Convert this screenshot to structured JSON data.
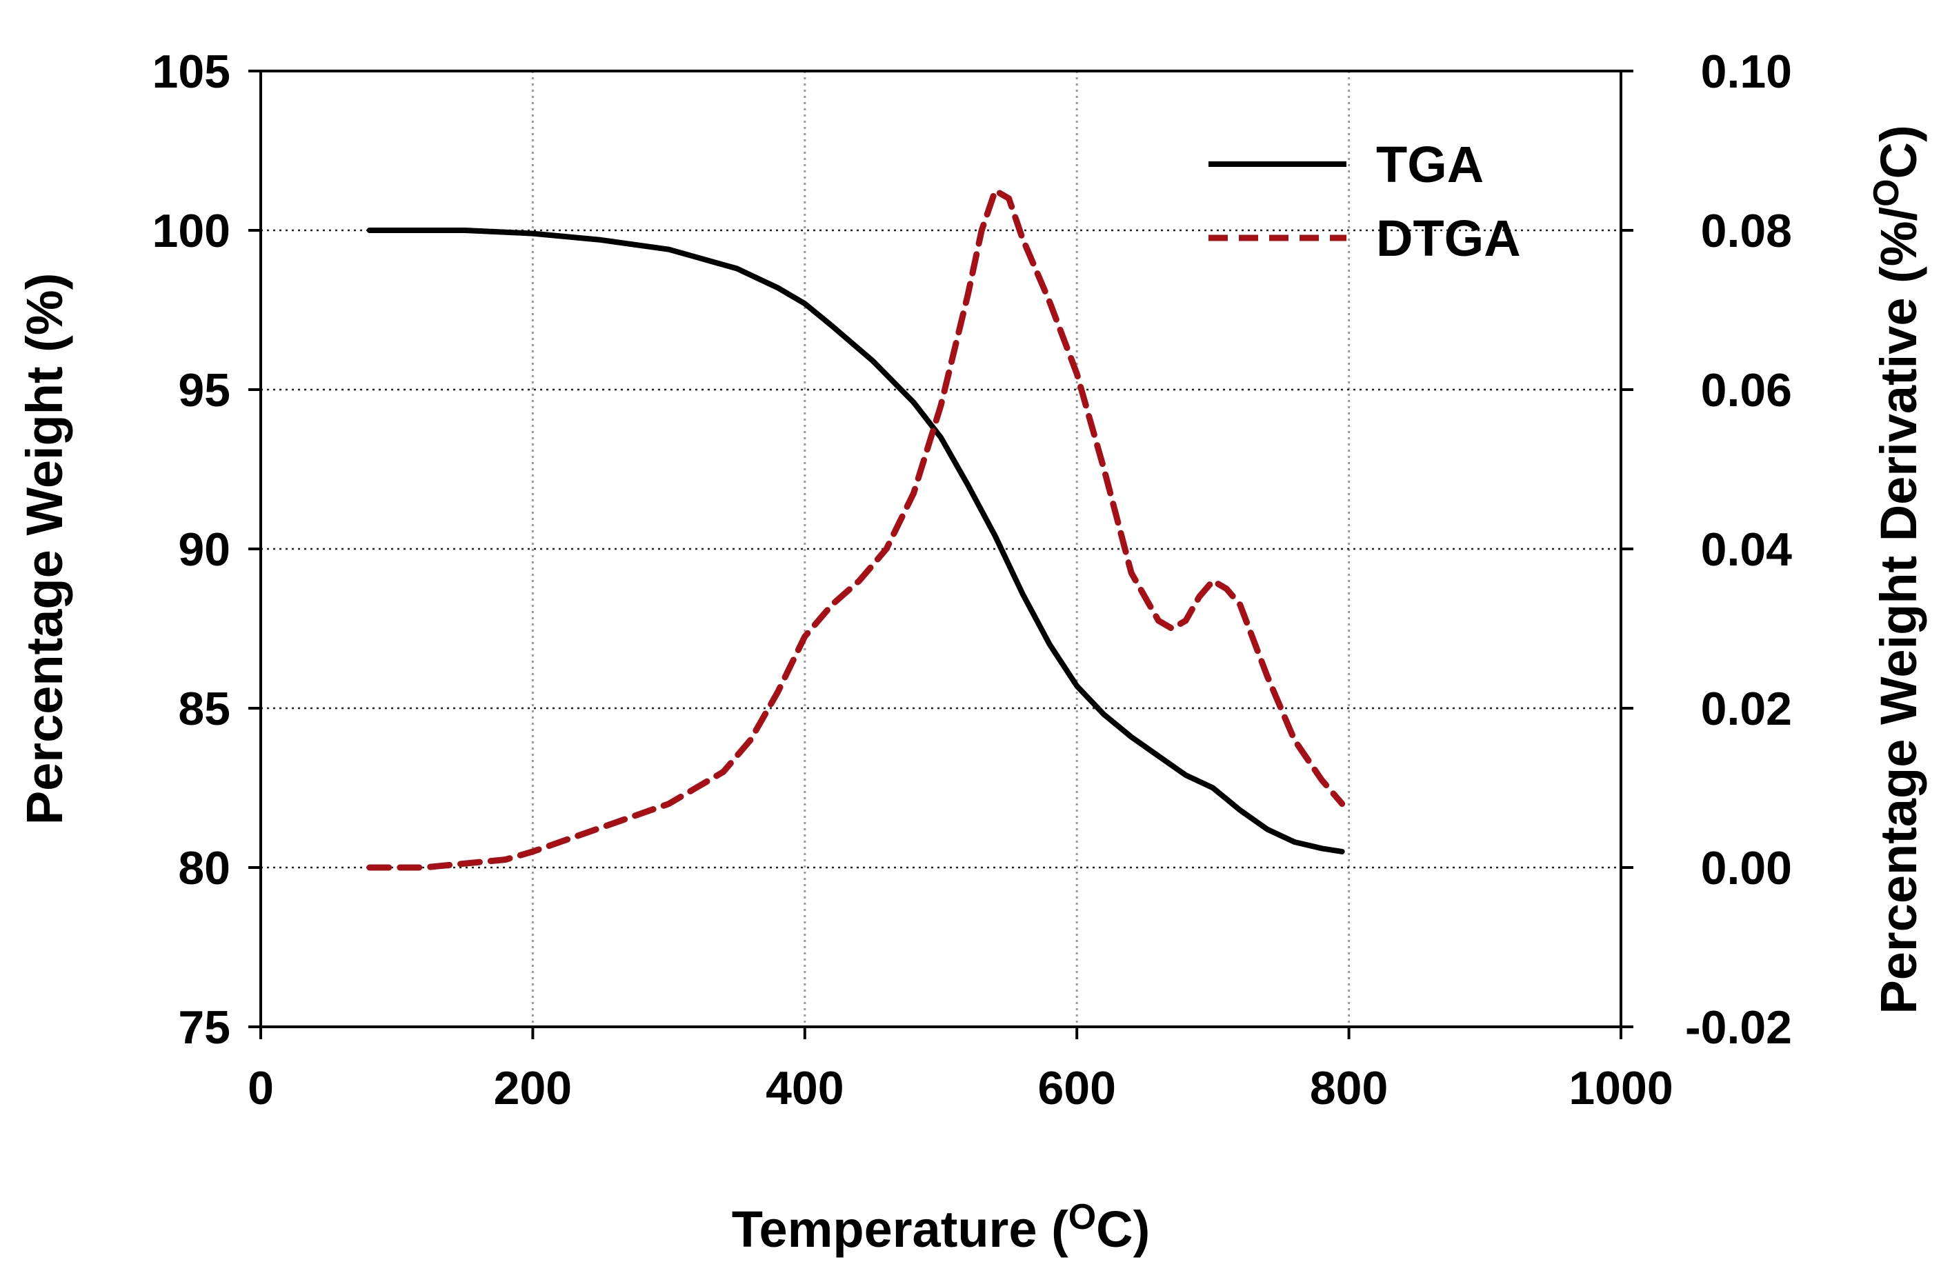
{
  "chart_data": {
    "type": "line",
    "title": "",
    "xlabel": "Temperature (",
    "xlabel_unit_sup": "O",
    "xlabel_unit_tail": "C)",
    "ylabel_left": "Percentage Weight (%)",
    "ylabel_right": "Percentage Weight Derivative (%/",
    "ylabel_right_sup": "O",
    "ylabel_right_tail": "C)",
    "xlim": [
      0,
      1000
    ],
    "ylim_left": [
      75,
      105
    ],
    "ylim_right": [
      -0.02,
      0.1
    ],
    "x_ticks": [
      "0",
      "200",
      "400",
      "600",
      "800",
      "1000"
    ],
    "y_left_ticks": [
      "75",
      "80",
      "85",
      "90",
      "95",
      "100",
      "105"
    ],
    "y_right_ticks": [
      "-0.02",
      "0.00",
      "0.02",
      "0.04",
      "0.06",
      "0.08",
      "0.10"
    ],
    "grid": "dotted",
    "legend": {
      "position": "top-right",
      "entries": [
        "TGA",
        "DTGA"
      ]
    },
    "colors": {
      "TGA": "#000000",
      "DTGA": "#a50f15"
    },
    "series": [
      {
        "name": "TGA",
        "axis": "left",
        "style": "solid",
        "x": [
          80,
          100,
          150,
          200,
          250,
          300,
          350,
          380,
          400,
          420,
          450,
          480,
          500,
          520,
          540,
          560,
          580,
          600,
          620,
          640,
          660,
          680,
          700,
          720,
          740,
          760,
          780,
          795
        ],
        "y": [
          100.0,
          100.0,
          100.0,
          99.9,
          99.7,
          99.4,
          98.8,
          98.2,
          97.7,
          97.0,
          95.9,
          94.6,
          93.5,
          92.0,
          90.4,
          88.6,
          87.0,
          85.7,
          84.8,
          84.1,
          83.5,
          82.9,
          82.5,
          81.8,
          81.2,
          80.8,
          80.6,
          80.5
        ]
      },
      {
        "name": "DTGA",
        "axis": "right",
        "style": "dashed",
        "x": [
          80,
          100,
          120,
          150,
          180,
          200,
          250,
          300,
          340,
          360,
          380,
          400,
          420,
          440,
          460,
          480,
          500,
          520,
          530,
          540,
          550,
          560,
          580,
          600,
          620,
          640,
          660,
          670,
          680,
          690,
          700,
          710,
          720,
          740,
          760,
          780,
          795
        ],
        "y": [
          0.0,
          0.0,
          0.0,
          0.0005,
          0.001,
          0.002,
          0.005,
          0.008,
          0.012,
          0.016,
          0.022,
          0.029,
          0.033,
          0.036,
          0.04,
          0.047,
          0.058,
          0.072,
          0.08,
          0.085,
          0.084,
          0.079,
          0.071,
          0.062,
          0.05,
          0.037,
          0.031,
          0.03,
          0.031,
          0.034,
          0.036,
          0.035,
          0.033,
          0.024,
          0.016,
          0.011,
          0.008
        ]
      }
    ]
  }
}
